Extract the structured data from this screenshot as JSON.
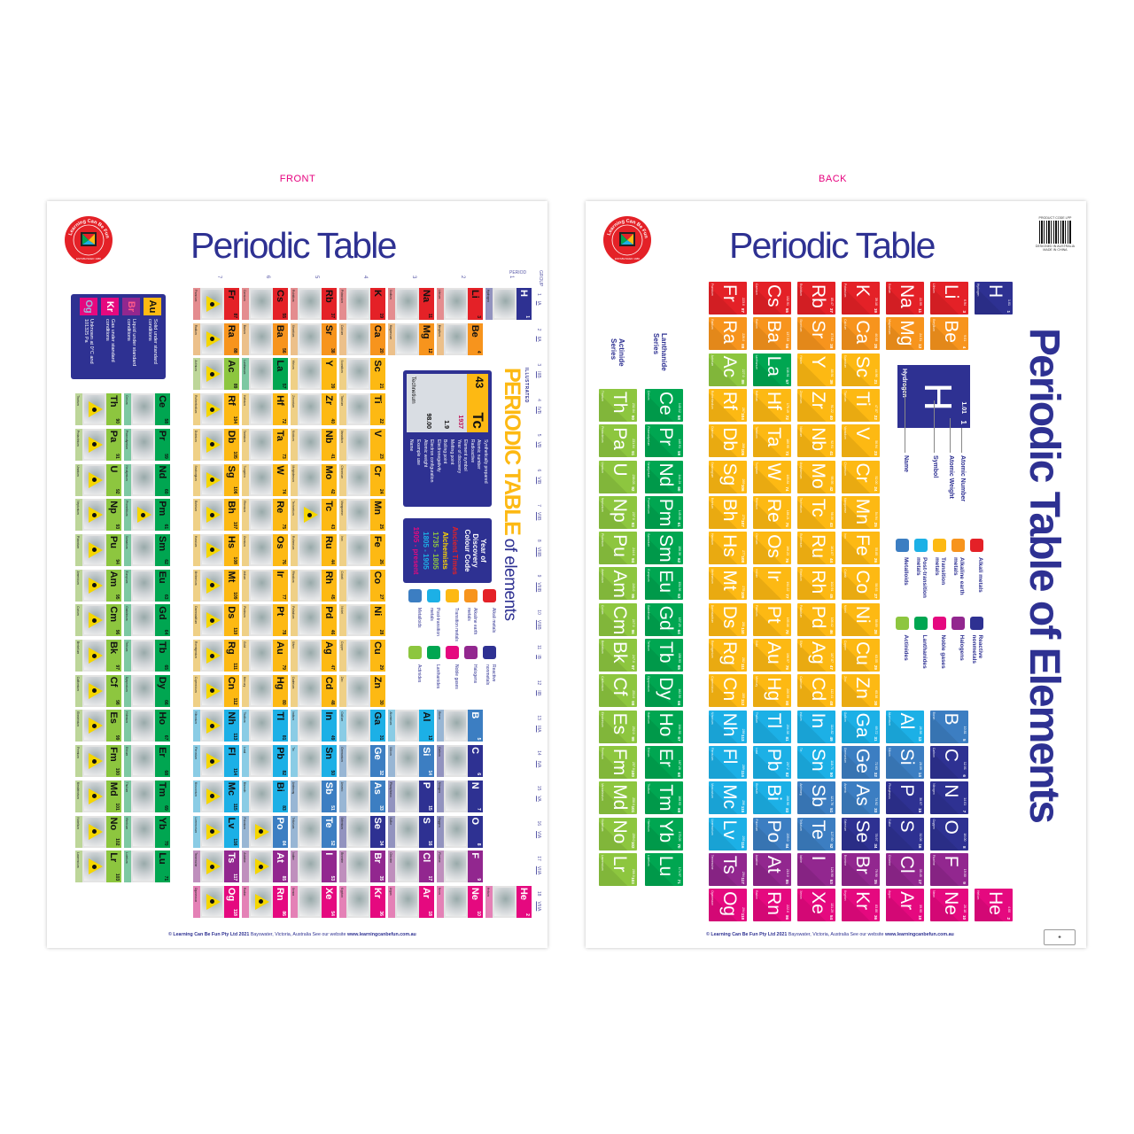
{
  "labels": {
    "front": "FRONT",
    "back": "BACK"
  },
  "logo": {
    "text": "Learning Can Be Fun",
    "established": "ESTABLISHED 1986"
  },
  "title": "Periodic Table",
  "footer": {
    "copyright": "© Learning Can Be Fun Pty Ltd 2021",
    "address": "Bayswater, Victoria, Australia  See our website",
    "website": "www.learningcanbefun.com.au"
  },
  "category_colors": {
    "am": "#e42127",
    "ae": "#f7941d",
    "tm": "#fdb913",
    "pt": "#1cb0e6",
    "md": "#3c7ec2",
    "nm": "#2e3192",
    "ha": "#92278f",
    "ng": "#e5097f",
    "la": "#00a651",
    "ac": "#8dc63f"
  },
  "legend": [
    {
      "cat": "am",
      "label": "Alkali metals"
    },
    {
      "cat": "ae",
      "label": "Alkaline earth metals"
    },
    {
      "cat": "tm",
      "label": "Transition metals"
    },
    {
      "cat": "pt",
      "label": "Post-transition metals"
    },
    {
      "cat": "md",
      "label": "Metalloids"
    },
    {
      "cat": "nm",
      "label": "Reactive nonmetals"
    },
    {
      "cat": "ha",
      "label": "Halogens"
    },
    {
      "cat": "ng",
      "label": "Noble gases"
    },
    {
      "cat": "la",
      "label": "Lanthanides"
    },
    {
      "cat": "ac",
      "label": "Actinides"
    }
  ],
  "front": {
    "period_label": "PERIOD",
    "group_label": "GROUP",
    "periods": [
      "1",
      "2",
      "3",
      "4",
      "5",
      "6",
      "7"
    ],
    "groups": [
      {
        "n": "1",
        "r": "IA"
      },
      {
        "n": "2",
        "r": "IIA"
      },
      {
        "n": "3",
        "r": "IIIB"
      },
      {
        "n": "4",
        "r": "IVB"
      },
      {
        "n": "5",
        "r": "VB"
      },
      {
        "n": "6",
        "r": "VIB"
      },
      {
        "n": "7",
        "r": "VIIB"
      },
      {
        "n": "8",
        "r": "VIIIB"
      },
      {
        "n": "9",
        "r": "VIIIB"
      },
      {
        "n": "10",
        "r": "VIIIB"
      },
      {
        "n": "11",
        "r": "IB"
      },
      {
        "n": "12",
        "r": "IIB"
      },
      {
        "n": "13",
        "r": "IIIA"
      },
      {
        "n": "14",
        "r": "IVA"
      },
      {
        "n": "15",
        "r": "VA"
      },
      {
        "n": "16",
        "r": "VIA"
      },
      {
        "n": "17",
        "r": "VIIA"
      },
      {
        "n": "18",
        "r": "VIIIA"
      }
    ],
    "heading": {
      "small": "ILLUSTRATED",
      "main": "PERIODIC TABLE",
      "rest": "of elements"
    },
    "states": [
      {
        "sym": "Au",
        "label": "Solid under standard conditions",
        "bg": "#fdb913",
        "fg": "#111"
      },
      {
        "sym": "Br",
        "label": "Liquid under standard conditions",
        "bg": "#92278f",
        "fg": "#ff5a8a"
      },
      {
        "sym": "Kr",
        "label": "Gas under standard conditions",
        "bg": "#e5097f",
        "fg": "#fff"
      },
      {
        "sym": "Og",
        "label": "Unknown at 0°C and 101325 Pa",
        "bg": "#e5097f",
        "fg": "#9bd"
      }
    ],
    "key": {
      "num": "43",
      "sym": "Tc",
      "year": "1937",
      "weight": "98.00",
      "en": "1.9",
      "name": "Technetium",
      "labels": [
        "Synthetically prepared",
        "Atomic number",
        "Radioactive",
        "Element symbol",
        "Year of discovery",
        "Melting point",
        "Boiling point",
        "Electronegativity",
        "Electron configuration",
        "Atomic weight",
        "Example use",
        "Name"
      ]
    },
    "year_code": {
      "title": "Year of Discovery Colour Code",
      "items": [
        {
          "label": "Ancient Times",
          "color": "#e42127"
        },
        {
          "label": "Alchemists",
          "color": "#fdd700"
        },
        {
          "label": "1735 - 1805",
          "color": "#8dc63f"
        },
        {
          "label": "1805 - 1905",
          "color": "#1cb0e6"
        },
        {
          "label": "1905 - present",
          "color": "#e5097f"
        }
      ]
    }
  },
  "back": {
    "title": "Periodic Table of Elements",
    "lanthanide_label": "Lanthanide Series",
    "actinide_label": "Actinide Series",
    "key": {
      "sym": "H",
      "name": "Hydrogen",
      "weight": "1.01",
      "num": "1",
      "labels": {
        "number": "Atomic Number",
        "weight": "Atomic Weight",
        "symbol": "Symbol",
        "name": "Name"
      }
    },
    "product_code": "PRODUCT CODE LPP",
    "designed": "DESIGNED IN AUSTRALIA",
    "made": "MADE IN CHINA"
  },
  "elements": [
    [
      1,
      "H",
      "Hydrogen",
      "1.01",
      "nm"
    ],
    [
      2,
      "He",
      "Helium",
      "4.00",
      "ng"
    ],
    [
      3,
      "Li",
      "Lithium",
      "6.94",
      "am"
    ],
    [
      4,
      "Be",
      "Beryllium",
      "9.01",
      "ae"
    ],
    [
      5,
      "B",
      "Boron",
      "10.81",
      "md"
    ],
    [
      6,
      "C",
      "Carbon",
      "12.01",
      "nm"
    ],
    [
      7,
      "N",
      "Nitrogen",
      "14.01",
      "nm"
    ],
    [
      8,
      "O",
      "Oxygen",
      "16.00",
      "nm"
    ],
    [
      9,
      "F",
      "Fluorine",
      "19.00",
      "ha"
    ],
    [
      10,
      "Ne",
      "Neon",
      "20.18",
      "ng"
    ],
    [
      11,
      "Na",
      "Sodium",
      "22.99",
      "am"
    ],
    [
      12,
      "Mg",
      "Magnesium",
      "24.31",
      "ae"
    ],
    [
      13,
      "Al",
      "Aluminium",
      "26.98",
      "pt"
    ],
    [
      14,
      "Si",
      "Silicon",
      "28.09",
      "md"
    ],
    [
      15,
      "P",
      "Phosphorus",
      "30.97",
      "nm"
    ],
    [
      16,
      "S",
      "Sulfur",
      "32.06",
      "nm"
    ],
    [
      17,
      "Cl",
      "Chlorine",
      "35.45",
      "ha"
    ],
    [
      18,
      "Ar",
      "Argon",
      "39.95",
      "ng"
    ],
    [
      19,
      "K",
      "Potassium",
      "39.10",
      "am"
    ],
    [
      20,
      "Ca",
      "Calcium",
      "40.08",
      "ae"
    ],
    [
      21,
      "Sc",
      "Scandium",
      "44.96",
      "tm"
    ],
    [
      22,
      "Ti",
      "Titanium",
      "47.87",
      "tm"
    ],
    [
      23,
      "V",
      "Vanadium",
      "50.94",
      "tm"
    ],
    [
      24,
      "Cr",
      "Chromium",
      "52.00",
      "tm"
    ],
    [
      25,
      "Mn",
      "Manganese",
      "54.94",
      "tm"
    ],
    [
      26,
      "Fe",
      "Iron",
      "55.85",
      "tm"
    ],
    [
      27,
      "Co",
      "Cobalt",
      "58.93",
      "tm"
    ],
    [
      28,
      "Ni",
      "Nickel",
      "58.69",
      "tm"
    ],
    [
      29,
      "Cu",
      "Copper",
      "63.55",
      "tm"
    ],
    [
      30,
      "Zn",
      "Zinc",
      "65.38",
      "tm"
    ],
    [
      31,
      "Ga",
      "Gallium",
      "69.72",
      "pt"
    ],
    [
      32,
      "Ge",
      "Germanium",
      "72.63",
      "md"
    ],
    [
      33,
      "As",
      "Arsenic",
      "74.92",
      "md"
    ],
    [
      34,
      "Se",
      "Selenium",
      "78.97",
      "nm"
    ],
    [
      35,
      "Br",
      "Bromine",
      "79.90",
      "ha"
    ],
    [
      36,
      "Kr",
      "Krypton",
      "83.80",
      "ng"
    ],
    [
      37,
      "Rb",
      "Rubidium",
      "85.47",
      "am"
    ],
    [
      38,
      "Sr",
      "Strontium",
      "87.62",
      "ae"
    ],
    [
      39,
      "Y",
      "Yttrium",
      "88.91",
      "tm"
    ],
    [
      40,
      "Zr",
      "Zirconium",
      "91.22",
      "tm"
    ],
    [
      41,
      "Nb",
      "Niobium",
      "92.91",
      "tm"
    ],
    [
      42,
      "Mo",
      "Molybdenum",
      "95.95",
      "tm"
    ],
    [
      43,
      "Tc",
      "Technetium",
      "98.00",
      "tm"
    ],
    [
      44,
      "Ru",
      "Ruthenium",
      "101.07",
      "tm"
    ],
    [
      45,
      "Rh",
      "Rhodium",
      "102.91",
      "tm"
    ],
    [
      46,
      "Pd",
      "Palladium",
      "106.42",
      "tm"
    ],
    [
      47,
      "Ag",
      "Silver",
      "107.87",
      "tm"
    ],
    [
      48,
      "Cd",
      "Cadmium",
      "112.41",
      "tm"
    ],
    [
      49,
      "In",
      "Indium",
      "114.82",
      "pt"
    ],
    [
      50,
      "Sn",
      "Tin",
      "118.71",
      "pt"
    ],
    [
      51,
      "Sb",
      "Antimony",
      "121.76",
      "md"
    ],
    [
      52,
      "Te",
      "Tellurium",
      "127.60",
      "md"
    ],
    [
      53,
      "I",
      "Iodine",
      "126.90",
      "ha"
    ],
    [
      54,
      "Xe",
      "Xenon",
      "131.29",
      "ng"
    ],
    [
      55,
      "Cs",
      "Caesium",
      "132.91",
      "am"
    ],
    [
      56,
      "Ba",
      "Barium",
      "137.33",
      "ae"
    ],
    [
      57,
      "La",
      "Lanthanum",
      "138.91",
      "la"
    ],
    [
      58,
      "Ce",
      "Cerium",
      "140.12",
      "la"
    ],
    [
      59,
      "Pr",
      "Praseodymium",
      "140.91",
      "la"
    ],
    [
      60,
      "Nd",
      "Neodymium",
      "144.24",
      "la"
    ],
    [
      61,
      "Pm",
      "Promethium",
      "145.00",
      "la"
    ],
    [
      62,
      "Sm",
      "Samarium",
      "150.36",
      "la"
    ],
    [
      63,
      "Eu",
      "Europium",
      "151.96",
      "la"
    ],
    [
      64,
      "Gd",
      "Gadolinium",
      "157.25",
      "la"
    ],
    [
      65,
      "Tb",
      "Terbium",
      "158.93",
      "la"
    ],
    [
      66,
      "Dy",
      "Dysprosium",
      "162.50",
      "la"
    ],
    [
      67,
      "Ho",
      "Holmium",
      "164.93",
      "la"
    ],
    [
      68,
      "Er",
      "Erbium",
      "167.26",
      "la"
    ],
    [
      69,
      "Tm",
      "Thulium",
      "168.93",
      "la"
    ],
    [
      70,
      "Yb",
      "Ytterbium",
      "173.05",
      "la"
    ],
    [
      71,
      "Lu",
      "Lutetium",
      "174.97",
      "la"
    ],
    [
      72,
      "Hf",
      "Hafnium",
      "178.49",
      "tm"
    ],
    [
      73,
      "Ta",
      "Tantalum",
      "180.95",
      "tm"
    ],
    [
      74,
      "W",
      "Tungsten",
      "183.84",
      "tm"
    ],
    [
      75,
      "Re",
      "Rhenium",
      "186.21",
      "tm"
    ],
    [
      76,
      "Os",
      "Osmium",
      "190.23",
      "tm"
    ],
    [
      77,
      "Ir",
      "Iridium",
      "192.22",
      "tm"
    ],
    [
      78,
      "Pt",
      "Platinum",
      "195.08",
      "tm"
    ],
    [
      79,
      "Au",
      "Gold",
      "196.97",
      "tm"
    ],
    [
      80,
      "Hg",
      "Mercury",
      "200.59",
      "tm"
    ],
    [
      81,
      "Tl",
      "Thallium",
      "204.38",
      "pt"
    ],
    [
      82,
      "Pb",
      "Lead",
      "207.2",
      "pt"
    ],
    [
      83,
      "Bi",
      "Bismuth",
      "208.98",
      "pt"
    ],
    [
      84,
      "Po",
      "Polonium",
      "209.0",
      "md"
    ],
    [
      85,
      "At",
      "Astatine",
      "210.0",
      "ha"
    ],
    [
      86,
      "Rn",
      "Radon",
      "222.0",
      "ng"
    ],
    [
      87,
      "Fr",
      "Francium",
      "223.0",
      "am"
    ],
    [
      88,
      "Ra",
      "Radium",
      "226.0",
      "ae"
    ],
    [
      89,
      "Ac",
      "Actinium",
      "227.0",
      "ac"
    ],
    [
      90,
      "Th",
      "Thorium",
      "232.04",
      "ac"
    ],
    [
      91,
      "Pa",
      "Protactinium",
      "231.04",
      "ac"
    ],
    [
      92,
      "U",
      "Uranium",
      "238.03",
      "ac"
    ],
    [
      93,
      "Np",
      "Neptunium",
      "237.0",
      "ac"
    ],
    [
      94,
      "Pu",
      "Plutonium",
      "244.0",
      "ac"
    ],
    [
      95,
      "Am",
      "Americium",
      "243.0",
      "ac"
    ],
    [
      96,
      "Cm",
      "Curium",
      "247.0",
      "ac"
    ],
    [
      97,
      "Bk",
      "Berkelium",
      "247.0",
      "ac"
    ],
    [
      98,
      "Cf",
      "Californium",
      "251.0",
      "ac"
    ],
    [
      99,
      "Es",
      "Einsteinium",
      "252.0",
      "ac"
    ],
    [
      100,
      "Fm",
      "Fermium",
      "257.0",
      "ac"
    ],
    [
      101,
      "Md",
      "Mendelevium",
      "258.0",
      "ac"
    ],
    [
      102,
      "No",
      "Nobelium",
      "259.0",
      "ac"
    ],
    [
      103,
      "Lr",
      "Lawrencium",
      "266.0",
      "ac"
    ],
    [
      104,
      "Rf",
      "Rutherfordium",
      "267",
      "tm"
    ],
    [
      105,
      "Db",
      "Dubnium",
      "268",
      "tm"
    ],
    [
      106,
      "Sg",
      "Seaborgium",
      "269",
      "tm"
    ],
    [
      107,
      "Bh",
      "Bohrium",
      "270",
      "tm"
    ],
    [
      108,
      "Hs",
      "Hassium",
      "277",
      "tm"
    ],
    [
      109,
      "Mt",
      "Meitnerium",
      "278",
      "tm"
    ],
    [
      110,
      "Ds",
      "Darmstadtium",
      "281",
      "tm"
    ],
    [
      111,
      "Rg",
      "Roentgenium",
      "282",
      "tm"
    ],
    [
      112,
      "Cn",
      "Copernicium",
      "285",
      "tm"
    ],
    [
      113,
      "Nh",
      "Nihonium",
      "286",
      "pt"
    ],
    [
      114,
      "Fl",
      "Flerovium",
      "289",
      "pt"
    ],
    [
      115,
      "Mc",
      "Moscovium",
      "290",
      "pt"
    ],
    [
      116,
      "Lv",
      "Livermorium",
      "293",
      "pt"
    ],
    [
      117,
      "Ts",
      "Tennessine",
      "294",
      "ha"
    ],
    [
      118,
      "Og",
      "Oganesson",
      "294",
      "ng"
    ]
  ]
}
